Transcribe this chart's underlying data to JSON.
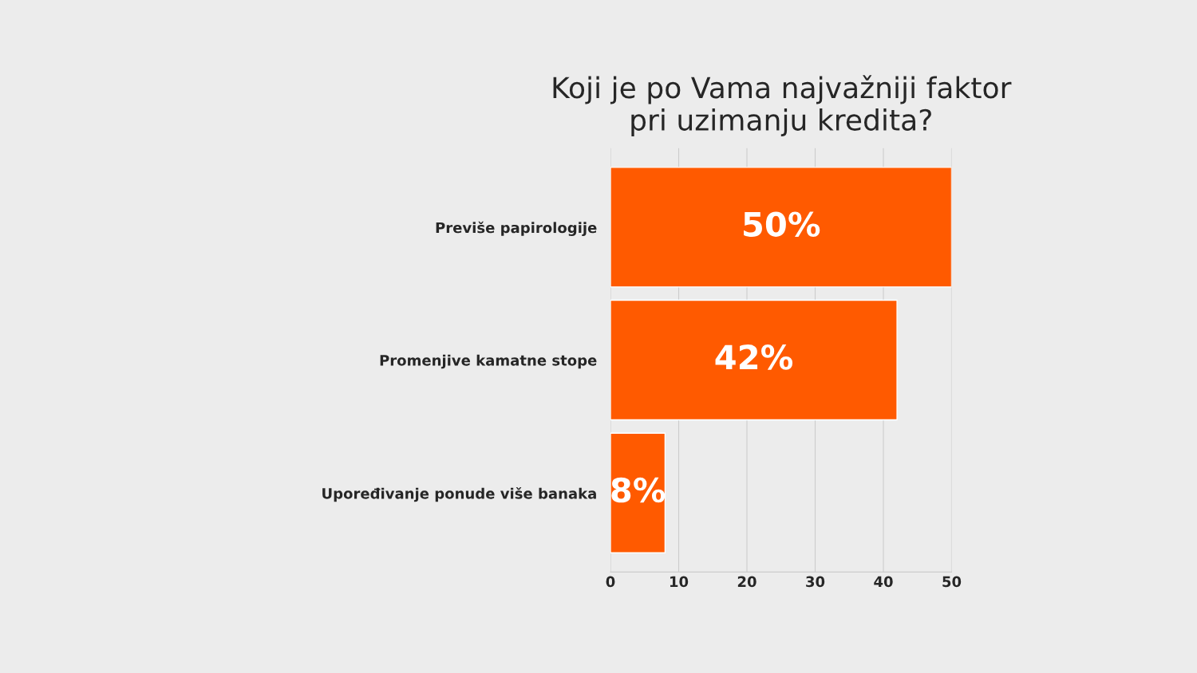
{
  "chart_data": {
    "type": "bar",
    "orientation": "horizontal",
    "title": "Koji je po Vama najvažniji faktor\npri uzimanju kredita?",
    "categories": [
      "Previše papirologije",
      "Promenjive kamatne stope",
      "Upoređivanje ponude više banaka"
    ],
    "values": [
      50,
      42,
      8
    ],
    "color": "#ff5a00",
    "value_labels": [
      "50%",
      "42%",
      "8%"
    ],
    "xlim": [
      0,
      50
    ],
    "xticks": [
      0,
      10,
      20,
      30,
      40,
      50
    ],
    "grid": "x"
  }
}
